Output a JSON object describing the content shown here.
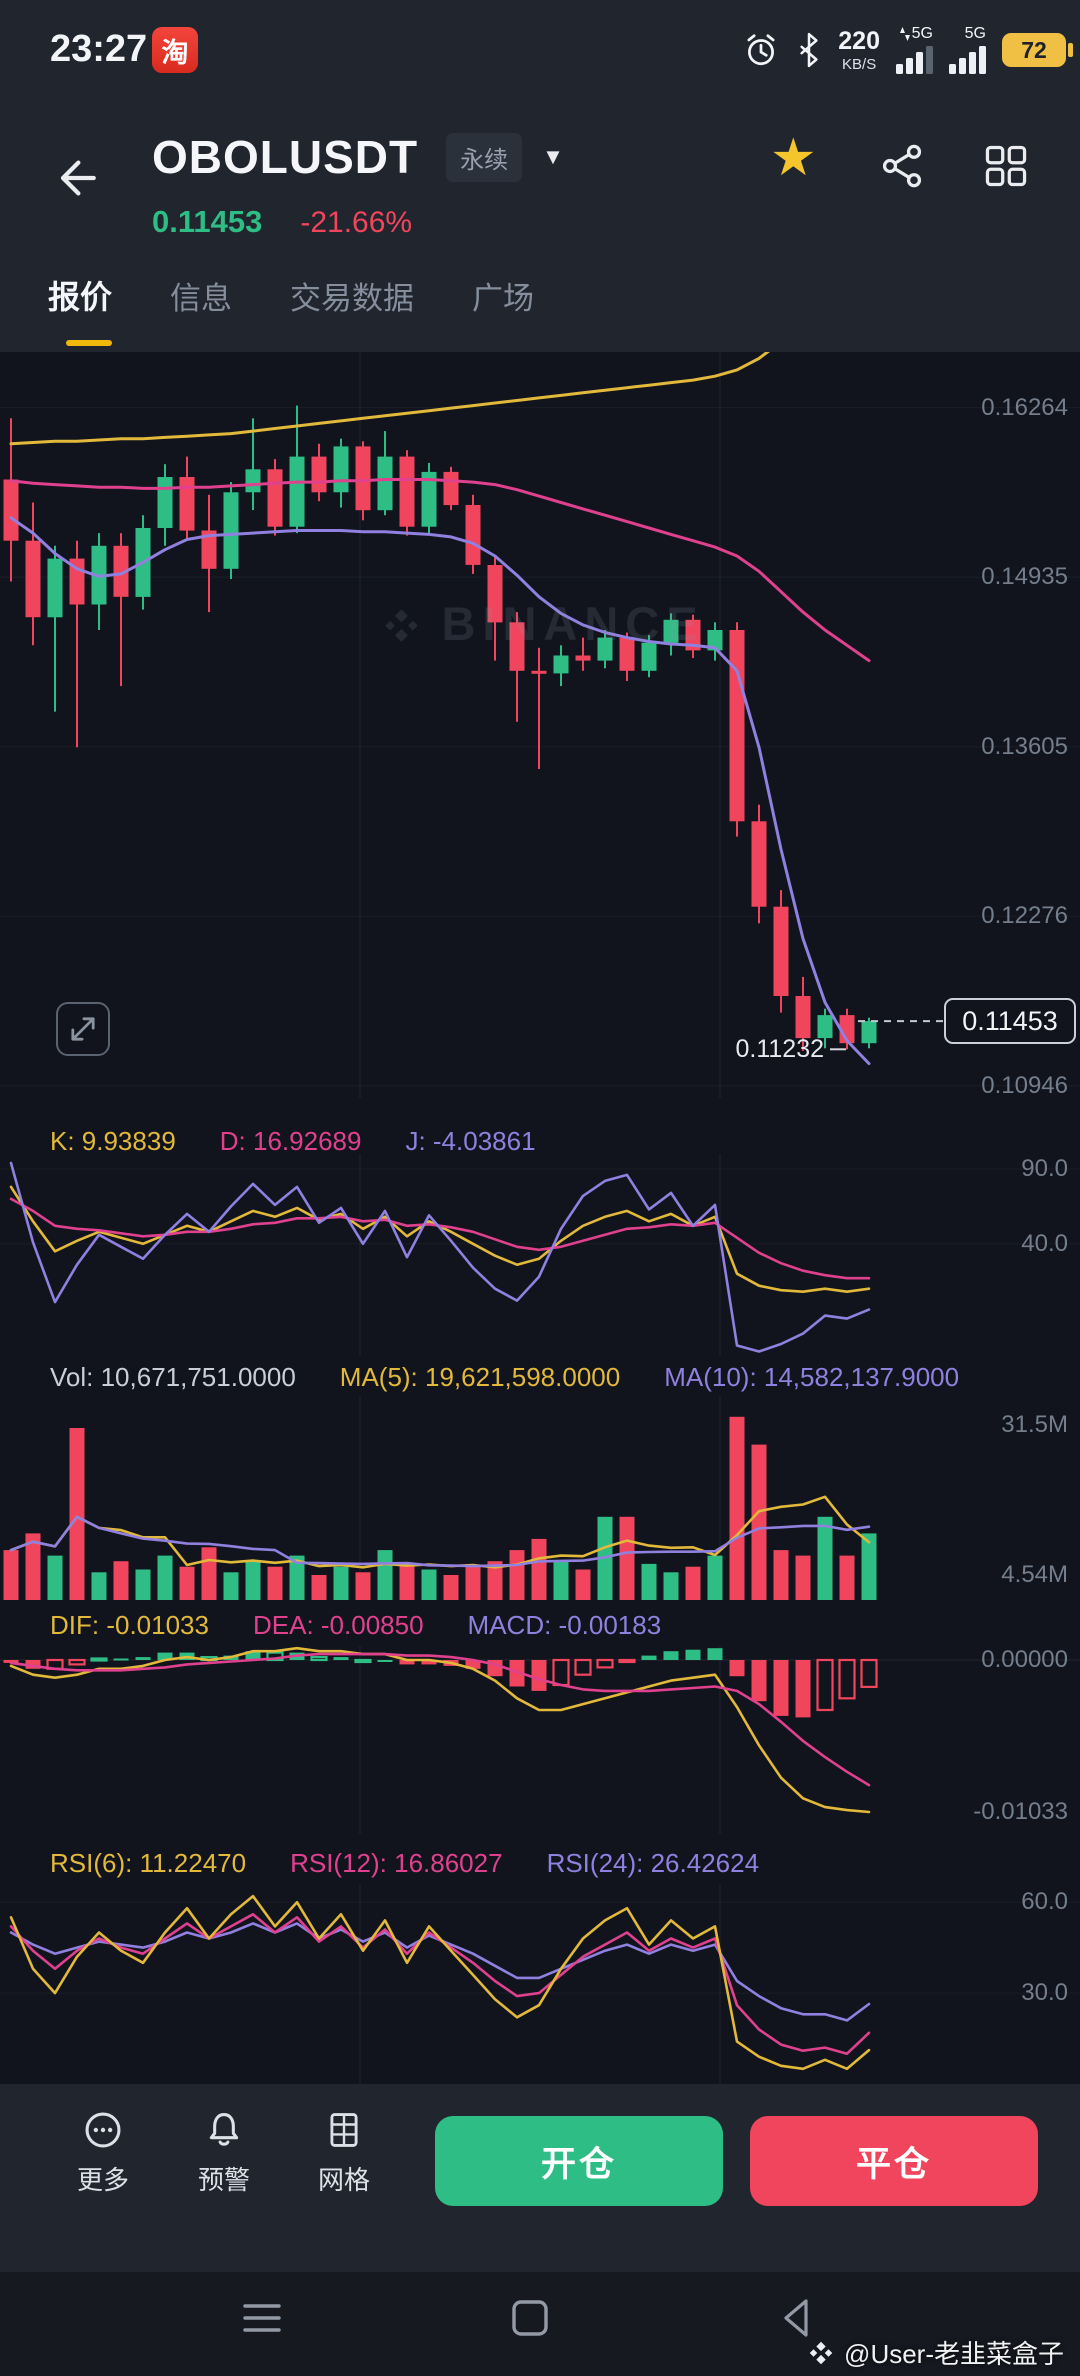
{
  "colors": {
    "green": "#2EBD85",
    "red": "#F0455C",
    "yellow": "#E2B93B",
    "pink": "#E0418F",
    "purple": "#9080DF",
    "accent": "#F0B90B",
    "muted": "#C9CFD8",
    "axis": "#747E8C"
  },
  "status_bar": {
    "time": "23:27",
    "taobao_label": "淘",
    "net_speed": "220",
    "net_speed_unit": "KB/S",
    "sim1_net": "5G",
    "sim2_net": "5G",
    "battery_level": "72"
  },
  "header": {
    "symbol": "OBOLUSDT",
    "contract_badge": "永续",
    "last_price": "0.11453",
    "change_percent": "-21.66%"
  },
  "tabs": [
    {
      "label": "报价",
      "active": true
    },
    {
      "label": "信息",
      "active": false
    },
    {
      "label": "交易数据",
      "active": false
    },
    {
      "label": "广场",
      "active": false
    }
  ],
  "main_chart": {
    "watermark": "BINANCE",
    "price_max": 0.167,
    "price_min": 0.1085,
    "y_axis": [
      {
        "label": "0.16264",
        "value": 0.16264
      },
      {
        "label": "0.14935",
        "value": 0.14935
      },
      {
        "label": "0.13605",
        "value": 0.13605
      },
      {
        "label": "0.12276",
        "value": 0.12276
      },
      {
        "label": "0.10946",
        "value": 0.10946
      }
    ],
    "current_price": {
      "label": "0.11453",
      "value": 0.11453
    },
    "low_marker": {
      "label": "0.11232",
      "value": 0.11232
    },
    "candles": [
      [
        0.157,
        0.1618,
        0.149,
        0.1522
      ],
      [
        0.1522,
        0.1552,
        0.144,
        0.1462
      ],
      [
        0.1462,
        0.1518,
        0.1388,
        0.1508
      ],
      [
        0.1508,
        0.1522,
        0.136,
        0.1472
      ],
      [
        0.1472,
        0.1528,
        0.1452,
        0.1518
      ],
      [
        0.1518,
        0.1528,
        0.1408,
        0.1478
      ],
      [
        0.1478,
        0.1542,
        0.1468,
        0.1532
      ],
      [
        0.1532,
        0.1582,
        0.1518,
        0.1572
      ],
      [
        0.1572,
        0.1588,
        0.1522,
        0.153
      ],
      [
        0.153,
        0.1558,
        0.1466,
        0.15
      ],
      [
        0.15,
        0.1568,
        0.1492,
        0.156
      ],
      [
        0.156,
        0.1618,
        0.1546,
        0.1578
      ],
      [
        0.1578,
        0.1586,
        0.1526,
        0.1533
      ],
      [
        0.1533,
        0.1628,
        0.1528,
        0.1588
      ],
      [
        0.1588,
        0.1598,
        0.1553,
        0.156
      ],
      [
        0.156,
        0.1602,
        0.1548,
        0.1596
      ],
      [
        0.1596,
        0.16,
        0.1538,
        0.1546
      ],
      [
        0.1546,
        0.1608,
        0.1542,
        0.1588
      ],
      [
        0.1588,
        0.1593,
        0.1526,
        0.1533
      ],
      [
        0.1533,
        0.1583,
        0.1528,
        0.1576
      ],
      [
        0.1576,
        0.158,
        0.1546,
        0.155
      ],
      [
        0.155,
        0.1558,
        0.1496,
        0.1503
      ],
      [
        0.1503,
        0.151,
        0.1428,
        0.1458
      ],
      [
        0.1458,
        0.1466,
        0.138,
        0.142
      ],
      [
        0.142,
        0.1438,
        0.1343,
        0.1418
      ],
      [
        0.1418,
        0.144,
        0.1408,
        0.1432
      ],
      [
        0.1432,
        0.1446,
        0.142,
        0.1428
      ],
      [
        0.1428,
        0.1452,
        0.1422,
        0.1446
      ],
      [
        0.1446,
        0.145,
        0.1412,
        0.142
      ],
      [
        0.142,
        0.1448,
        0.1415,
        0.1442
      ],
      [
        0.1442,
        0.1465,
        0.1432,
        0.146
      ],
      [
        0.146,
        0.1464,
        0.143,
        0.1436
      ],
      [
        0.1436,
        0.1458,
        0.1428,
        0.1452
      ],
      [
        0.1452,
        0.1458,
        0.129,
        0.1302
      ],
      [
        0.1302,
        0.1315,
        0.1222,
        0.1235
      ],
      [
        0.1235,
        0.1248,
        0.1152,
        0.1165
      ],
      [
        0.1165,
        0.118,
        0.1122,
        0.1132
      ],
      [
        0.1132,
        0.1155,
        0.1124,
        0.115
      ],
      [
        0.115,
        0.1155,
        0.11232,
        0.1128
      ],
      [
        0.1128,
        0.1148,
        0.1124,
        0.11453
      ]
    ],
    "boll": {
      "upper": [
        0.1598,
        0.1599,
        0.16,
        0.16,
        0.1601,
        0.1602,
        0.1602,
        0.1603,
        0.1604,
        0.1605,
        0.1606,
        0.1608,
        0.161,
        0.1612,
        0.1614,
        0.1616,
        0.1618,
        0.162,
        0.1622,
        0.1624,
        0.1626,
        0.1628,
        0.163,
        0.1632,
        0.1634,
        0.1636,
        0.1638,
        0.164,
        0.1642,
        0.1644,
        0.1646,
        0.1648,
        0.1651,
        0.1656,
        0.1665,
        0.1678,
        0.1695,
        0.1715,
        0.1738,
        0.1762
      ],
      "mid": [
        0.1569,
        0.1567,
        0.1566,
        0.1565,
        0.1564,
        0.1564,
        0.1563,
        0.1563,
        0.1564,
        0.1564,
        0.1565,
        0.1566,
        0.1567,
        0.1568,
        0.1568,
        0.1569,
        0.1569,
        0.157,
        0.157,
        0.157,
        0.1569,
        0.1568,
        0.1566,
        0.1562,
        0.1557,
        0.1552,
        0.1547,
        0.1542,
        0.1537,
        0.1532,
        0.1527,
        0.1522,
        0.1517,
        0.151,
        0.1498,
        0.1482,
        0.1466,
        0.1452,
        0.144,
        0.1428
      ],
      "lower": [
        0.154,
        0.1528,
        0.1512,
        0.15,
        0.1494,
        0.1496,
        0.1505,
        0.1515,
        0.1523,
        0.1526,
        0.1527,
        0.1528,
        0.1529,
        0.153,
        0.153,
        0.153,
        0.1529,
        0.1529,
        0.1528,
        0.1527,
        0.1525,
        0.152,
        0.151,
        0.1495,
        0.1478,
        0.1465,
        0.1456,
        0.145,
        0.1446,
        0.1443,
        0.1441,
        0.144,
        0.1438,
        0.142,
        0.136,
        0.128,
        0.121,
        0.116,
        0.113,
        0.1112
      ]
    }
  },
  "kdj": {
    "header": [
      {
        "text": "K: 9.93839",
        "color": "yellow"
      },
      {
        "text": "D: 16.92689",
        "color": "pink"
      },
      {
        "text": "J: -4.03861",
        "color": "purple"
      }
    ],
    "axis": [
      {
        "label": "90.0",
        "value": 90
      },
      {
        "label": "40.0",
        "value": 40
      }
    ],
    "k": [
      78,
      55,
      35,
      42,
      48,
      44,
      40,
      46,
      52,
      48,
      55,
      62,
      58,
      64,
      56,
      60,
      50,
      58,
      45,
      55,
      48,
      40,
      32,
      26,
      30,
      42,
      52,
      58,
      62,
      55,
      60,
      52,
      58,
      20,
      12,
      9,
      8,
      10,
      8,
      10
    ],
    "d": [
      70,
      62,
      52,
      50,
      49,
      47,
      45,
      46,
      48,
      48,
      50,
      53,
      54,
      57,
      57,
      58,
      55,
      56,
      52,
      53,
      51,
      48,
      43,
      38,
      36,
      38,
      42,
      46,
      50,
      51,
      53,
      52,
      54,
      44,
      34,
      27,
      22,
      19,
      17,
      17
    ],
    "j": [
      94,
      41,
      1,
      26,
      46,
      38,
      30,
      46,
      60,
      48,
      65,
      80,
      66,
      78,
      54,
      64,
      40,
      62,
      31,
      59,
      42,
      24,
      10,
      2,
      18,
      50,
      72,
      82,
      86,
      63,
      74,
      52,
      66,
      -28,
      -32,
      -27,
      -20,
      -8,
      -10,
      -4
    ]
  },
  "volume": {
    "header": [
      {
        "text": "Vol: 10,671,751.0000",
        "color": "muted"
      },
      {
        "text": "MA(5): 19,621,598.0000",
        "color": "yellow"
      },
      {
        "text": "MA(10): 14,582,137.9000",
        "color": "purple"
      }
    ],
    "axis": [
      {
        "label": "31.5M",
        "value": 31.5
      },
      {
        "label": "4.54M",
        "value": 4.54
      }
    ],
    "bars": [
      9,
      12,
      8,
      31,
      5,
      7,
      5.5,
      8,
      6,
      9.5,
      5,
      7,
      6,
      8,
      4.5,
      6,
      5,
      9,
      6.5,
      5.5,
      4.5,
      6,
      7,
      9,
      11,
      7,
      5.5,
      15,
      15,
      6.5,
      5,
      6,
      8,
      33,
      28,
      9,
      8,
      15,
      8,
      12
    ]
  },
  "macd": {
    "header": [
      {
        "text": "DIF: -0.01033",
        "color": "yellow"
      },
      {
        "text": "DEA: -0.00850",
        "color": "pink"
      },
      {
        "text": "MACD: -0.00183",
        "color": "purple"
      }
    ],
    "axis": [
      {
        "label": "0.00000",
        "value": 0
      },
      {
        "label": "-0.01033",
        "value": -0.01033
      }
    ],
    "dif": [
      -0.0004,
      -0.001,
      -0.0012,
      -0.001,
      -0.0006,
      -0.0006,
      -0.0004,
      0.0,
      0.0002,
      0.0,
      0.0002,
      0.0006,
      0.0006,
      0.0008,
      0.0006,
      0.0006,
      0.0004,
      0.0004,
      0.0,
      0.0,
      -0.0002,
      -0.0006,
      -0.0014,
      -0.0026,
      -0.0034,
      -0.0034,
      -0.003,
      -0.0026,
      -0.0022,
      -0.0018,
      -0.0014,
      -0.0012,
      -0.001,
      -0.0032,
      -0.0058,
      -0.008,
      -0.0094,
      -0.01,
      -0.0102,
      -0.01033
    ],
    "dea": [
      -0.0002,
      -0.0004,
      -0.0006,
      -0.0007,
      -0.0007,
      -0.0007,
      -0.0006,
      -0.0005,
      -0.0003,
      -0.0002,
      -0.0001,
      0.0,
      0.0001,
      0.0003,
      0.0004,
      0.0004,
      0.0004,
      0.0004,
      0.0003,
      0.0003,
      0.0002,
      0.0,
      -0.0003,
      -0.0008,
      -0.0013,
      -0.0017,
      -0.002,
      -0.0021,
      -0.0021,
      -0.0021,
      -0.002,
      -0.0019,
      -0.0018,
      -0.0021,
      -0.003,
      -0.0042,
      -0.0055,
      -0.0066,
      -0.0076,
      -0.0085
    ]
  },
  "rsi": {
    "header": [
      {
        "text": "RSI(6): 11.22470",
        "color": "yellow"
      },
      {
        "text": "RSI(12): 16.86027",
        "color": "pink"
      },
      {
        "text": "RSI(24): 26.42624",
        "color": "purple"
      }
    ],
    "axis": [
      {
        "label": "60.0",
        "value": 60
      },
      {
        "label": "30.0",
        "value": 30
      }
    ],
    "rsi6": [
      55,
      38,
      30,
      42,
      50,
      44,
      40,
      50,
      58,
      48,
      56,
      62,
      52,
      60,
      48,
      56,
      44,
      54,
      40,
      52,
      44,
      36,
      28,
      22,
      26,
      38,
      48,
      54,
      58,
      46,
      54,
      48,
      52,
      14,
      9,
      6,
      5,
      8,
      5,
      11.2
    ],
    "rsi12": [
      52,
      44,
      38,
      44,
      48,
      45,
      43,
      48,
      53,
      48,
      52,
      56,
      50,
      55,
      47,
      52,
      45,
      51,
      43,
      50,
      45,
      40,
      34,
      29,
      30,
      36,
      42,
      46,
      50,
      44,
      48,
      45,
      48,
      26,
      18,
      13,
      11,
      12,
      10,
      16.9
    ],
    "rsi24": [
      50,
      46,
      43,
      45,
      47,
      46,
      45,
      47,
      50,
      48,
      50,
      53,
      50,
      53,
      48,
      51,
      47,
      50,
      45,
      49,
      46,
      43,
      39,
      35,
      35,
      38,
      41,
      44,
      46,
      43,
      46,
      44,
      46,
      34,
      29,
      25,
      23,
      23,
      21,
      26.4
    ]
  },
  "toolbar": {
    "more_label": "更多",
    "alert_label": "预警",
    "grid_label": "网格",
    "open_button": "开仓",
    "close_button": "平仓"
  },
  "nav_watermark": "@User-老韭菜盒子"
}
